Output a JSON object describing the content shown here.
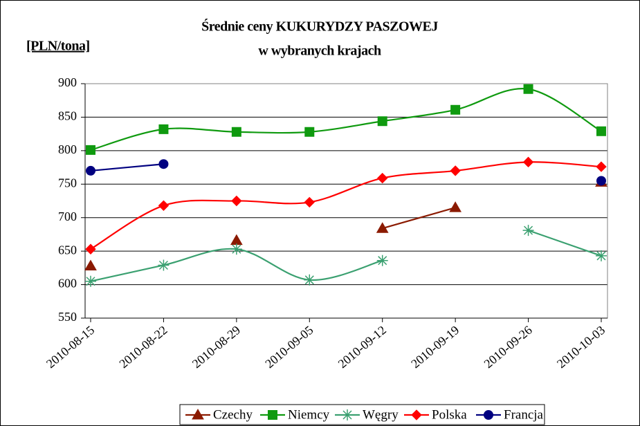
{
  "chart_data": {
    "type": "line",
    "title": "Średnie ceny KUKURYDZY PASZOWEJ",
    "subtitle": "w wybranych krajach",
    "y_label": "[PLN/tona]",
    "categories": [
      "2010-08-15",
      "2010-08-22",
      "2010-08-29",
      "2010-09-05",
      "2010-09-12",
      "2010-09-19",
      "2010-09-26",
      "2010-10-03"
    ],
    "ylim": [
      550,
      900
    ],
    "yticks": [
      550,
      600,
      650,
      700,
      750,
      800,
      850,
      900
    ],
    "grid": true,
    "smooth": true,
    "legend": "bottom",
    "series": [
      {
        "name": "Czechy",
        "color": "#8b1a00",
        "marker": "triangle",
        "values": [
          628,
          null,
          666,
          null,
          684,
          715,
          null,
          753
        ]
      },
      {
        "name": "Niemcy",
        "color": "#0f9a0f",
        "marker": "square",
        "values": [
          801,
          832,
          828,
          828,
          844,
          861,
          892,
          829
        ]
      },
      {
        "name": "Węgry",
        "color": "#3aa070",
        "marker": "asterisk",
        "values": [
          605,
          629,
          653,
          607,
          636,
          null,
          681,
          643
        ]
      },
      {
        "name": "Polska",
        "color": "#ff0000",
        "marker": "diamond",
        "values": [
          653,
          718,
          725,
          723,
          759,
          770,
          783,
          776
        ]
      },
      {
        "name": "Francja",
        "color": "#000080",
        "marker": "circle",
        "values": [
          770,
          780,
          null,
          null,
          null,
          null,
          null,
          755
        ]
      }
    ]
  }
}
